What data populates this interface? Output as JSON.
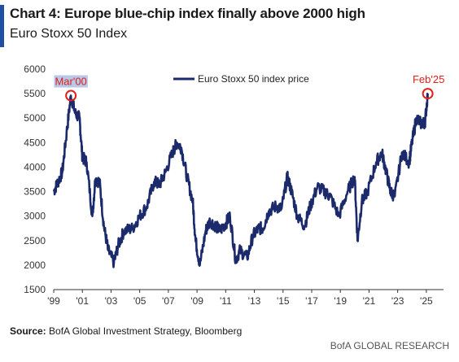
{
  "header": {
    "title": "Chart 4: Europe blue-chip index finally above 2000 high",
    "subtitle": "Euro Stoxx 50 Index"
  },
  "footer": {
    "source_label": "Source:",
    "source_text": "BofA Global Investment Strategy, Bloomberg",
    "brand": "BofA GLOBAL RESEARCH"
  },
  "colors": {
    "series": "#1b2a6b",
    "annotation": "#e0201a",
    "accent": "#1f4fa3",
    "annotation_highlight": "#b8c8e8"
  },
  "chart_data": {
    "type": "line",
    "title": "Chart 4: Europe blue-chip index finally above 2000 high",
    "subtitle": "Euro Stoxx 50 Index",
    "xlabel": "",
    "ylabel": "",
    "xlim": [
      1999.0,
      2026.2
    ],
    "ylim": [
      1500,
      6000
    ],
    "y_ticks": [
      1500,
      2000,
      2500,
      3000,
      3500,
      4000,
      4500,
      5000,
      5500,
      6000
    ],
    "x_ticks": [
      {
        "value": 1999,
        "label": "'99"
      },
      {
        "value": 2001,
        "label": "'01"
      },
      {
        "value": 2003,
        "label": "'03"
      },
      {
        "value": 2005,
        "label": "'05"
      },
      {
        "value": 2007,
        "label": "'07"
      },
      {
        "value": 2009,
        "label": "'09"
      },
      {
        "value": 2011,
        "label": "'11"
      },
      {
        "value": 2013,
        "label": "'13"
      },
      {
        "value": 2015,
        "label": "'15"
      },
      {
        "value": 2017,
        "label": "'17"
      },
      {
        "value": 2019,
        "label": "'19"
      },
      {
        "value": 2021,
        "label": "'21"
      },
      {
        "value": 2023,
        "label": "'23"
      },
      {
        "value": 2025,
        "label": "'25"
      }
    ],
    "grid": false,
    "legend": "top-center",
    "series": [
      {
        "name": "Euro Stoxx 50 index price",
        "x": [
          1999.0,
          1999.3,
          1999.6,
          1999.9,
          2000.2,
          2000.5,
          2000.8,
          2001.0,
          2001.3,
          2001.7,
          2001.9,
          2002.2,
          2002.5,
          2002.8,
          2003.2,
          2003.5,
          2003.9,
          2004.5,
          2005.0,
          2005.5,
          2006.0,
          2006.4,
          2006.8,
          2007.3,
          2007.6,
          2007.9,
          2008.3,
          2008.7,
          2008.9,
          2009.2,
          2009.6,
          2009.9,
          2010.3,
          2010.6,
          2011.0,
          2011.3,
          2011.7,
          2012.0,
          2012.5,
          2012.9,
          2013.3,
          2013.6,
          2014.0,
          2014.5,
          2014.9,
          2015.3,
          2015.6,
          2016.0,
          2016.5,
          2016.9,
          2017.4,
          2017.9,
          2018.3,
          2018.9,
          2019.5,
          2020.0,
          2020.2,
          2020.5,
          2020.9,
          2021.5,
          2021.9,
          2022.2,
          2022.5,
          2022.8,
          2023.3,
          2023.8,
          2024.0,
          2024.3,
          2024.6,
          2024.9,
          2025.1
        ],
        "y": [
          3500,
          3700,
          3900,
          4700,
          5460,
          5100,
          5000,
          4200,
          4100,
          3000,
          3750,
          3700,
          2800,
          2300,
          2050,
          2400,
          2700,
          2750,
          3000,
          3200,
          3700,
          3650,
          3900,
          4300,
          4500,
          4400,
          3800,
          3300,
          2500,
          2000,
          2700,
          2900,
          2800,
          2700,
          2850,
          3000,
          2100,
          2300,
          2150,
          2600,
          2750,
          2750,
          3100,
          3200,
          3150,
          3800,
          3500,
          3000,
          2800,
          3200,
          3600,
          3500,
          3400,
          3000,
          3500,
          3800,
          2500,
          3300,
          3500,
          4100,
          4300,
          3900,
          3500,
          3400,
          4300,
          4100,
          4500,
          5000,
          4900,
          4900,
          5500
        ]
      }
    ],
    "annotations": [
      {
        "label": "Mar'00",
        "x": 2000.2,
        "y": 5460
      },
      {
        "label": "Feb'25",
        "x": 2025.1,
        "y": 5500
      }
    ]
  }
}
